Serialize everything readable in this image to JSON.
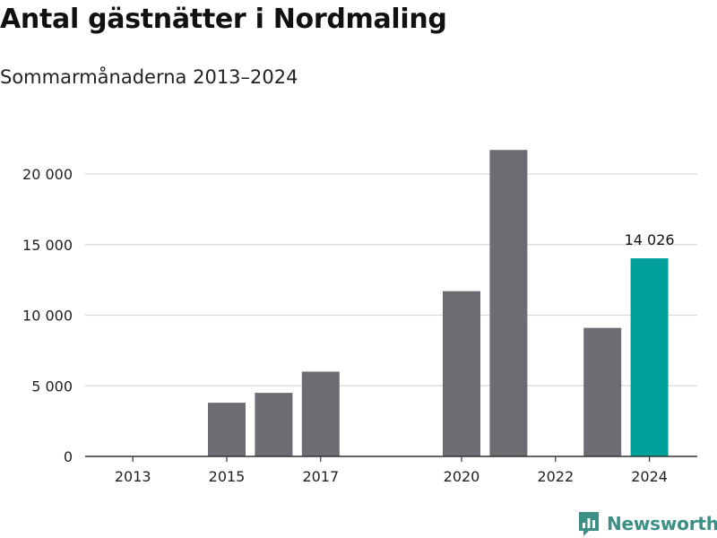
{
  "title": "Antal gästnätter i Nordmaling",
  "subtitle": "Sommarmånaderna 2013–2024",
  "brand": {
    "name": "Newsworthy",
    "color": "#3b8f85",
    "icon": "chart-speech-bubble-icon"
  },
  "chart_data": {
    "type": "bar",
    "categories": [
      "2013",
      "2014",
      "2015",
      "2016",
      "2017",
      "2018",
      "2019",
      "2020",
      "2021",
      "2022",
      "2023",
      "2024"
    ],
    "values": [
      null,
      null,
      3800,
      4500,
      6000,
      null,
      null,
      11700,
      21700,
      null,
      9100,
      14026
    ],
    "xtick_labels": [
      "2013",
      "2015",
      "2017",
      "2020",
      "2022",
      "2024"
    ],
    "ylim": [
      0,
      22000
    ],
    "yticks": [
      0,
      5000,
      10000,
      15000,
      20000
    ],
    "ytick_labels": [
      "0",
      "5 000",
      "10 000",
      "15 000",
      "20 000"
    ],
    "highlight_category": "2024",
    "highlight_label": "14 026",
    "colors": {
      "bar": "#6d6c72",
      "highlight": "#00a19b",
      "grid": "#d9d9d9",
      "axis": "#333333"
    },
    "grid": true,
    "legend": "none"
  }
}
